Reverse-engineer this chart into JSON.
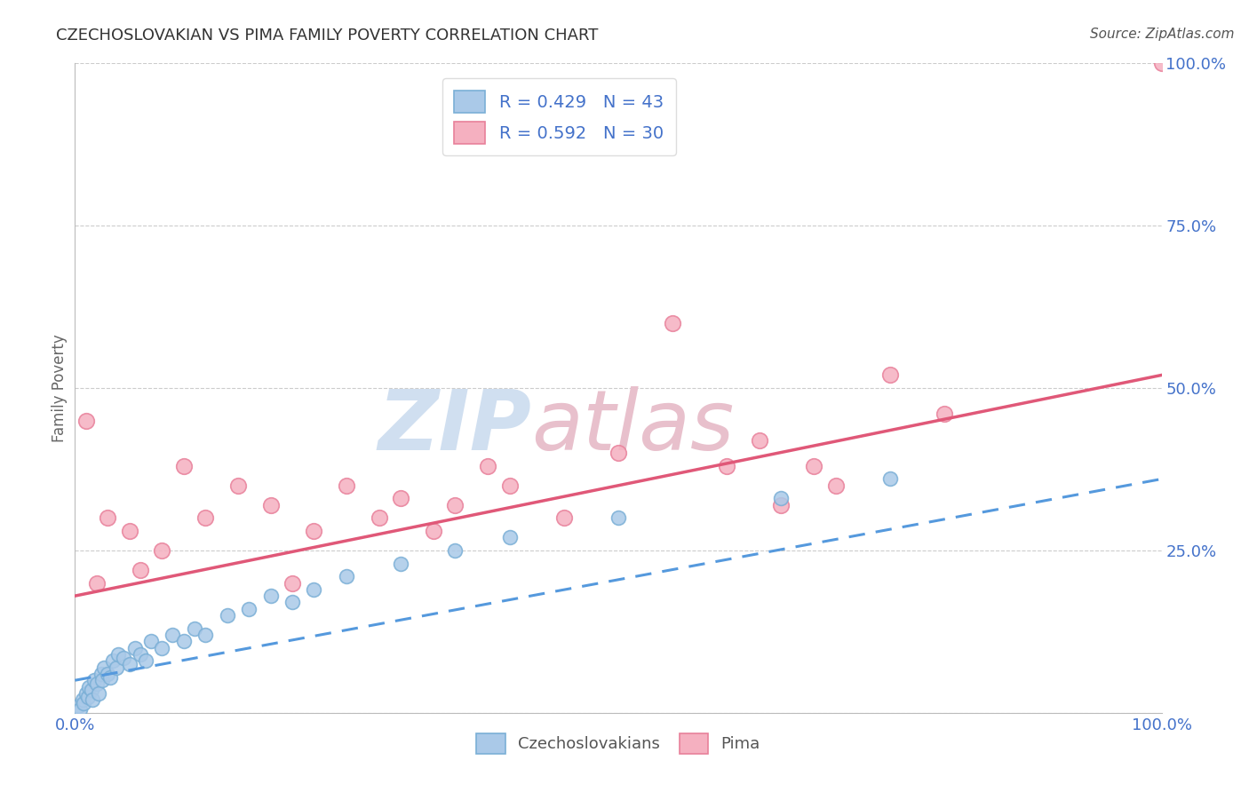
{
  "title": "CZECHOSLOVAKIAN VS PIMA FAMILY POVERTY CORRELATION CHART",
  "source": "Source: ZipAtlas.com",
  "ylabel": "Family Poverty",
  "legend_r_czech": "R = 0.429",
  "legend_n_czech": "N = 43",
  "legend_r_pima": "R = 0.592",
  "legend_n_pima": "N = 30",
  "czech_color": "#aac9e8",
  "czech_color_edge": "#7aafd6",
  "pima_color": "#f5b0c0",
  "pima_color_edge": "#e8809a",
  "trend_czech_color": "#5599dd",
  "trend_pima_color": "#e05878",
  "watermark_color": "#d0dff0",
  "watermark_color2": "#e8c0cc",
  "title_color": "#333333",
  "legend_text_color": "#4472ca",
  "tick_color": "#4472ca",
  "grid_color": "#cccccc",
  "czech_x": [
    0.3,
    0.5,
    0.7,
    0.8,
    1.0,
    1.2,
    1.3,
    1.5,
    1.6,
    1.8,
    2.0,
    2.2,
    2.4,
    2.5,
    2.7,
    3.0,
    3.2,
    3.5,
    3.8,
    4.0,
    4.5,
    5.0,
    5.5,
    6.0,
    6.5,
    7.0,
    8.0,
    9.0,
    10.0,
    11.0,
    12.0,
    14.0,
    16.0,
    18.0,
    20.0,
    22.0,
    25.0,
    30.0,
    35.0,
    40.0,
    50.0,
    65.0,
    75.0
  ],
  "czech_y": [
    1.0,
    0.5,
    2.0,
    1.5,
    3.0,
    2.5,
    4.0,
    3.5,
    2.0,
    5.0,
    4.5,
    3.0,
    6.0,
    5.0,
    7.0,
    6.0,
    5.5,
    8.0,
    7.0,
    9.0,
    8.5,
    7.5,
    10.0,
    9.0,
    8.0,
    11.0,
    10.0,
    12.0,
    11.0,
    13.0,
    12.0,
    15.0,
    16.0,
    18.0,
    17.0,
    19.0,
    21.0,
    23.0,
    25.0,
    27.0,
    30.0,
    33.0,
    36.0
  ],
  "pima_x": [
    1.0,
    2.0,
    3.0,
    5.0,
    6.0,
    8.0,
    10.0,
    12.0,
    15.0,
    18.0,
    20.0,
    22.0,
    25.0,
    28.0,
    30.0,
    33.0,
    35.0,
    38.0,
    40.0,
    45.0,
    50.0,
    55.0,
    60.0,
    63.0,
    65.0,
    68.0,
    70.0,
    75.0,
    80.0,
    100.0
  ],
  "pima_y": [
    45.0,
    20.0,
    30.0,
    28.0,
    22.0,
    25.0,
    38.0,
    30.0,
    35.0,
    32.0,
    20.0,
    28.0,
    35.0,
    30.0,
    33.0,
    28.0,
    32.0,
    38.0,
    35.0,
    30.0,
    40.0,
    60.0,
    38.0,
    42.0,
    32.0,
    38.0,
    35.0,
    52.0,
    46.0,
    100.0
  ],
  "czech_trend_x0": 0,
  "czech_trend_y0": 5.0,
  "czech_trend_x1": 100,
  "czech_trend_y1": 36.0,
  "pima_trend_x0": 0,
  "pima_trend_y0": 18.0,
  "pima_trend_x1": 100,
  "pima_trend_y1": 52.0,
  "xlim": [
    0,
    100
  ],
  "ylim": [
    0,
    100
  ],
  "yticks": [
    0,
    25,
    50,
    75,
    100
  ],
  "ytick_labels": [
    "",
    "25.0%",
    "50.0%",
    "75.0%",
    "100.0%"
  ]
}
